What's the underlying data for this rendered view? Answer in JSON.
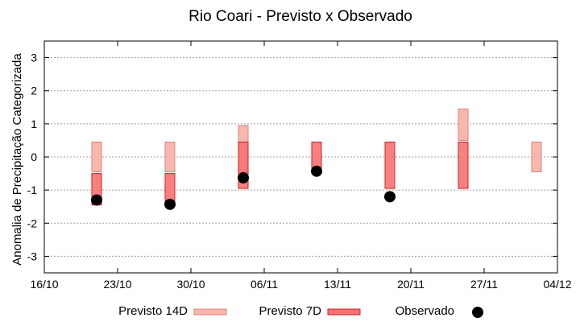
{
  "chart_data": {
    "type": "range-bar",
    "title": "Rio Coari - Previsto x Observado",
    "xlabel": "",
    "ylabel": "Anomalia de Precipitação Categorizada",
    "ylim": [
      -3.5,
      3.5
    ],
    "yticks": [
      -3,
      -2,
      -1,
      0,
      1,
      2,
      3
    ],
    "x_tick_labels": [
      "16/10",
      "23/10",
      "30/10",
      "06/11",
      "13/11",
      "20/11",
      "27/11",
      "04/12"
    ],
    "grid": true,
    "legend_placement": "bottom",
    "series": [
      {
        "name": "Previsto 14D",
        "color": "#f7b7ad",
        "stroke": "#e08080",
        "ranges": [
          {
            "x": 5,
            "low": -0.45,
            "high": 0.45
          },
          {
            "x": 12,
            "low": -0.45,
            "high": 0.45
          },
          {
            "x": 19,
            "low": -0.45,
            "high": 0.95
          },
          {
            "x": 40,
            "low": 0.5,
            "high": 1.45
          },
          {
            "x": 47,
            "low": -0.45,
            "high": 0.45
          }
        ]
      },
      {
        "name": "Previsto 7D",
        "color": "#f87272",
        "stroke": "#cc2222",
        "ranges": [
          {
            "x": 5,
            "low": -1.45,
            "high": -0.5
          },
          {
            "x": 12,
            "low": -1.45,
            "high": -0.5
          },
          {
            "x": 19,
            "low": -0.95,
            "high": 0.45
          },
          {
            "x": 26,
            "low": -0.45,
            "high": 0.45
          },
          {
            "x": 33,
            "low": -0.95,
            "high": 0.45
          },
          {
            "x": 40,
            "low": -0.95,
            "high": 0.45
          }
        ]
      },
      {
        "name": "Observado",
        "color": "#000000",
        "points": [
          {
            "x": 5,
            "y": -1.3
          },
          {
            "x": 12,
            "y": -1.43
          },
          {
            "x": 19,
            "y": -0.63
          },
          {
            "x": 26,
            "y": -0.43
          },
          {
            "x": 33,
            "y": -1.2
          }
        ]
      }
    ]
  }
}
